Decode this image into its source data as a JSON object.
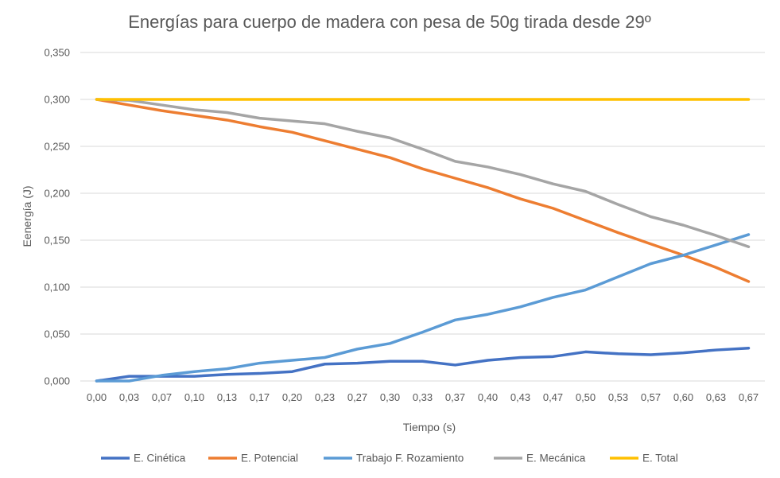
{
  "chart_data": {
    "type": "line",
    "title": "Energías para cuerpo de madera con pesa de 50g tirada desde 29º",
    "xlabel": "Tiempo (s)",
    "ylabel": "Eenergía (J)",
    "x": [
      "0,00",
      "0,03",
      "0,07",
      "0,10",
      "0,13",
      "0,17",
      "0,20",
      "0,23",
      "0,27",
      "0,30",
      "0,33",
      "0,37",
      "0,40",
      "0,43",
      "0,47",
      "0,50",
      "0,53",
      "0,57",
      "0,60",
      "0,63",
      "0,67"
    ],
    "ylim": [
      0,
      0.35
    ],
    "yticks": [
      "0,000",
      "0,050",
      "0,100",
      "0,150",
      "0,200",
      "0,250",
      "0,300",
      "0,350"
    ],
    "grid": true,
    "legend_position": "bottom",
    "series": [
      {
        "name": "E. Cinética",
        "color": "#4472c4",
        "values": [
          0.0,
          0.005,
          0.005,
          0.005,
          0.007,
          0.008,
          0.01,
          0.018,
          0.019,
          0.021,
          0.021,
          0.017,
          0.022,
          0.025,
          0.026,
          0.031,
          0.029,
          0.028,
          0.03,
          0.033,
          0.035
        ]
      },
      {
        "name": "E. Potencial",
        "color": "#ed7d31",
        "values": [
          0.3,
          0.294,
          0.288,
          0.283,
          0.278,
          0.271,
          0.265,
          0.256,
          0.247,
          0.238,
          0.226,
          0.216,
          0.206,
          0.194,
          0.184,
          0.171,
          0.158,
          0.146,
          0.134,
          0.121,
          0.106
        ]
      },
      {
        "name": "Trabajo F. Rozamiento",
        "color": "#5b9bd5",
        "values": [
          0.0,
          0.0,
          0.006,
          0.01,
          0.013,
          0.019,
          0.022,
          0.025,
          0.034,
          0.04,
          0.052,
          0.065,
          0.071,
          0.079,
          0.089,
          0.097,
          0.111,
          0.125,
          0.134,
          0.145,
          0.156
        ]
      },
      {
        "name": "E. Mecánica",
        "color": "#a5a5a5",
        "values": [
          0.3,
          0.299,
          0.294,
          0.289,
          0.286,
          0.28,
          0.277,
          0.274,
          0.266,
          0.259,
          0.247,
          0.234,
          0.228,
          0.22,
          0.21,
          0.202,
          0.188,
          0.175,
          0.166,
          0.155,
          0.143
        ]
      },
      {
        "name": "E. Total",
        "color": "#ffc000",
        "values": [
          0.3,
          0.3,
          0.3,
          0.3,
          0.3,
          0.3,
          0.3,
          0.3,
          0.3,
          0.3,
          0.3,
          0.3,
          0.3,
          0.3,
          0.3,
          0.3,
          0.3,
          0.3,
          0.3,
          0.3,
          0.3
        ]
      }
    ]
  }
}
